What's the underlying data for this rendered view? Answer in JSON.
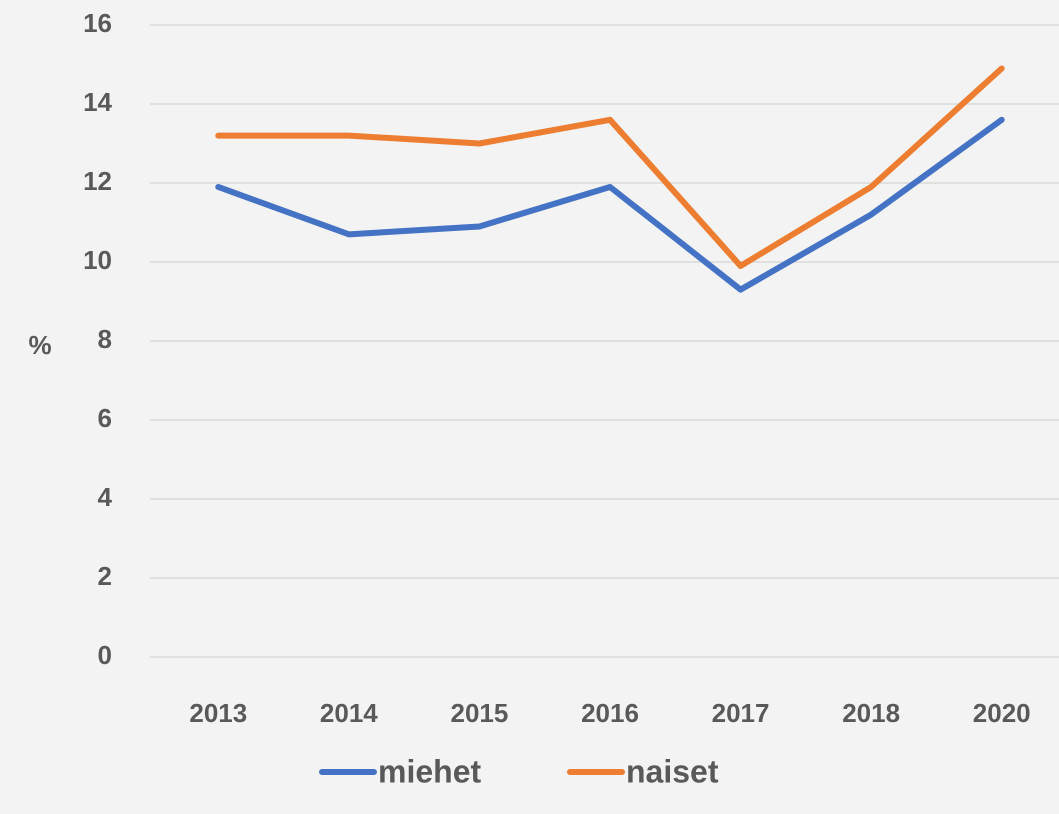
{
  "chart_data": {
    "type": "line",
    "y_label": "%",
    "categories": [
      "2013",
      "2014",
      "2015",
      "2016",
      "2017",
      "2018",
      "2020"
    ],
    "series": [
      {
        "name": "miehet",
        "color": "#4472c4",
        "values": [
          11.9,
          10.7,
          10.9,
          11.9,
          9.3,
          11.2,
          13.6
        ]
      },
      {
        "name": "naiset",
        "color": "#ed7d31",
        "values": [
          13.2,
          13.2,
          13.0,
          13.6,
          9.9,
          11.9,
          14.9
        ]
      }
    ],
    "ylim": [
      0,
      16
    ],
    "yticks": [
      0,
      2,
      4,
      6,
      8,
      10,
      12,
      14,
      16
    ],
    "grid": true,
    "legend": "bottom"
  }
}
